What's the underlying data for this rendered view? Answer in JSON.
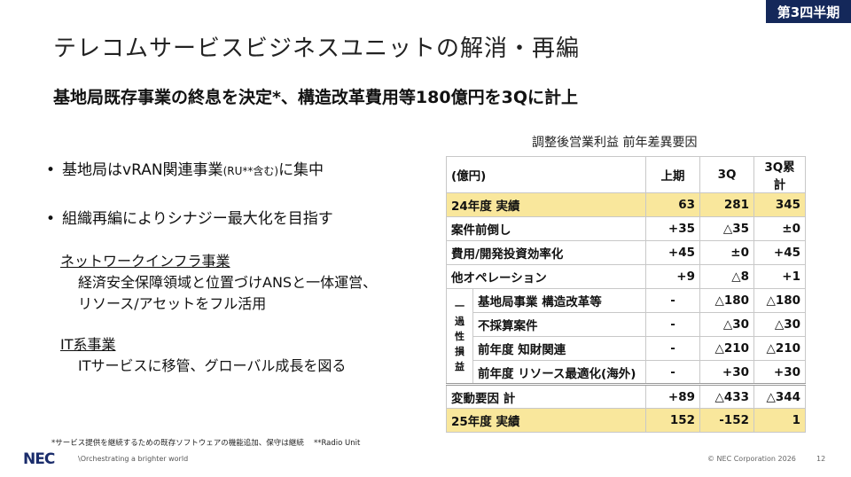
{
  "badge": "第3四半期",
  "title": "テレコムサービスビジネスユニットの解消・再編",
  "subtitle": "基地局既存事業の終息を決定*、構造改革費用等180億円を3Qに計上",
  "bullets": [
    {
      "text": "基地局はvRAN関連事業",
      "small": "(RU**含む)",
      "tail": "に集中"
    },
    {
      "text": "組織再編によりシナジー最大化を目指す"
    }
  ],
  "sections": [
    {
      "heading": "ネットワークインフラ事業",
      "lines": [
        "経済安全保障領域と位置づけANSと一体運営、",
        "リソース/アセットをフル活用"
      ]
    },
    {
      "heading": "IT系事業",
      "lines": [
        "ITサービスに移管、グローバル成長を図る"
      ]
    }
  ],
  "table": {
    "caption": "調整後営業利益 前年差異要因",
    "headers": [
      "(億円)",
      "上期",
      "3Q",
      "3Q累計"
    ],
    "rows": [
      {
        "label": "24年度 実績",
        "values": [
          "63",
          "281",
          "345"
        ]
      },
      {
        "label": "案件前倒し",
        "values": [
          "+35",
          "△35",
          "±0"
        ]
      },
      {
        "label": "費用/開発投資効率化",
        "values": [
          "+45",
          "±0",
          "+45"
        ]
      },
      {
        "label": "他オペレーション",
        "values": [
          "+9",
          "△8",
          "+1"
        ]
      }
    ],
    "group_label": [
      "一",
      "過",
      "性",
      "損",
      "益"
    ],
    "group_rows": [
      {
        "label": "基地局事業 構造改革等",
        "values": [
          "-",
          "△180",
          "△180"
        ]
      },
      {
        "label": "不採算案件",
        "values": [
          "-",
          "△30",
          "△30"
        ]
      },
      {
        "label": "前年度 知財関連",
        "values": [
          "-",
          "△210",
          "△210"
        ]
      },
      {
        "label": "前年度 リソース最適化(海外)",
        "values": [
          "-",
          "+30",
          "+30"
        ]
      }
    ],
    "total": {
      "label": "変動要因 計",
      "values": [
        "+89",
        "△433",
        "△344"
      ]
    },
    "result": {
      "label": "25年度 実績",
      "values": [
        "152",
        "-152",
        "1"
      ]
    },
    "highlight_color": "#f9e79c"
  },
  "footnote": "*サービス提供を継続するための既存ソフトウェアの機能追加、保守は継続　 **Radio Unit",
  "footer": {
    "logo": "NEC",
    "tagline": "\\Orchestrating a brighter world",
    "copyright": "© NEC Corporation 2026",
    "page": "12"
  }
}
